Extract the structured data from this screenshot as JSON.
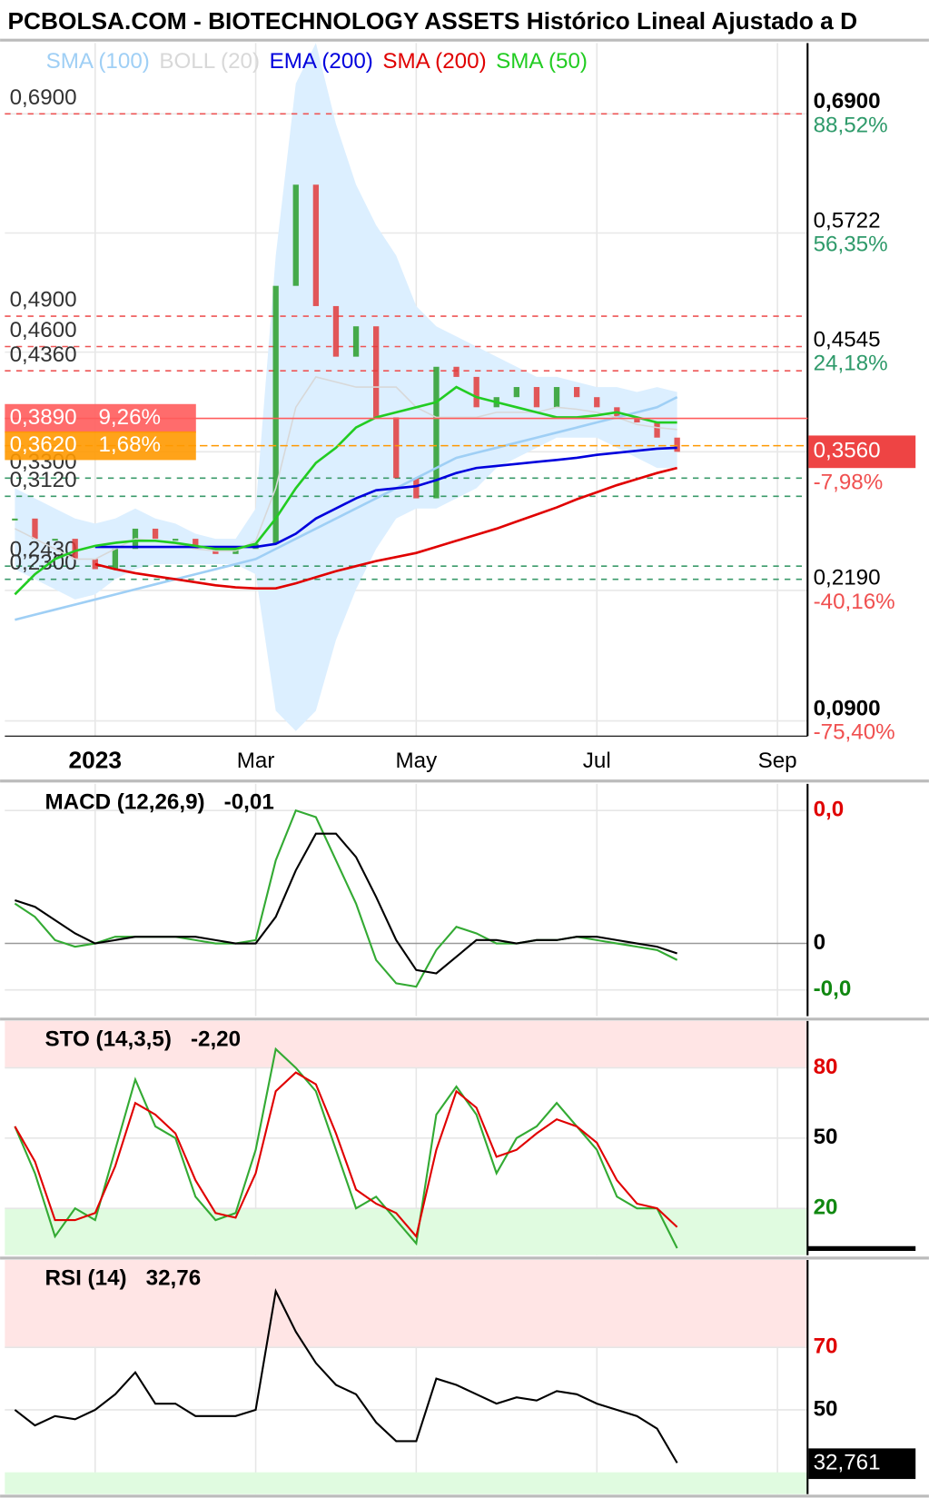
{
  "chart_data": [
    {
      "type": "candlestick",
      "title": "PCBOLSA.COM - BIOTECHNOLOGY ASSETS Histórico Lineal Ajustado a D",
      "categories": [
        null,
        null,
        null,
        null,
        "2023",
        null,
        null,
        null,
        null,
        null,
        null,
        null,
        "Mar",
        null,
        null,
        null,
        null,
        null,
        null,
        null,
        "May",
        null,
        null,
        null,
        null,
        null,
        null,
        null,
        null,
        "Jul",
        null,
        null,
        null,
        null,
        null,
        null,
        null,
        null,
        "Sep",
        null
      ],
      "values": [
        0.29,
        0.27,
        0.27,
        0.25,
        0.24,
        0.26,
        0.28,
        0.27,
        0.27,
        0.26,
        0.255,
        0.26,
        0.265,
        0.52,
        0.62,
        0.5,
        0.45,
        0.48,
        0.39,
        0.33,
        0.31,
        0.44,
        0.43,
        0.4,
        0.41,
        0.42,
        0.4,
        0.42,
        0.41,
        0.4,
        0.39,
        0.385,
        0.37,
        0.356,
        null,
        null,
        null,
        null,
        null,
        null
      ],
      "up_color": "#2a9d2a",
      "down_color": "#e23b3b",
      "series": [
        {
          "name": "SMA (100)",
          "color": "#9fcff5",
          "values": [
            0.19,
            0.195,
            0.2,
            0.205,
            0.21,
            0.215,
            0.22,
            0.225,
            0.23,
            0.235,
            0.24,
            0.245,
            0.25,
            0.26,
            0.27,
            0.28,
            0.29,
            0.3,
            0.31,
            0.32,
            0.33,
            0.34,
            0.35,
            0.355,
            0.36,
            0.365,
            0.37,
            0.375,
            0.38,
            0.385,
            0.39,
            0.395,
            0.4,
            0.41,
            null,
            null,
            null,
            null,
            null,
            null
          ]
        },
        {
          "name": "BOLL (20)",
          "color": "#d8d8d8",
          "band_color": "#dcefff",
          "values": [
            0.28,
            0.27,
            0.26,
            0.25,
            0.25,
            0.26,
            0.27,
            0.268,
            0.265,
            0.26,
            0.258,
            0.258,
            0.268,
            0.32,
            0.4,
            0.43,
            0.425,
            0.42,
            0.42,
            0.42,
            0.4,
            0.39,
            0.39,
            0.39,
            0.395,
            0.395,
            0.395,
            0.4,
            0.398,
            0.395,
            0.39,
            0.383,
            0.38,
            0.378,
            null,
            null,
            null,
            null,
            null,
            null
          ],
          "upper": [
            0.32,
            0.31,
            0.3,
            0.29,
            0.285,
            0.29,
            0.3,
            0.29,
            0.285,
            0.275,
            0.27,
            0.27,
            0.3,
            0.55,
            0.72,
            0.76,
            0.68,
            0.62,
            0.58,
            0.55,
            0.5,
            0.48,
            0.47,
            0.46,
            0.45,
            0.44,
            0.43,
            0.43,
            0.425,
            0.42,
            0.42,
            0.415,
            0.42,
            0.415,
            null,
            null,
            null,
            null,
            null,
            null
          ],
          "lower": [
            0.24,
            0.23,
            0.22,
            0.21,
            0.215,
            0.23,
            0.24,
            0.245,
            0.245,
            0.245,
            0.245,
            0.245,
            0.235,
            0.1,
            0.08,
            0.1,
            0.17,
            0.22,
            0.26,
            0.29,
            0.3,
            0.3,
            0.31,
            0.32,
            0.34,
            0.35,
            0.36,
            0.37,
            0.37,
            0.37,
            0.36,
            0.35,
            0.34,
            0.34,
            null,
            null,
            null,
            null,
            null,
            null
          ]
        },
        {
          "name": "EMA (200)",
          "color": "#0000dd",
          "values": [
            null,
            null,
            null,
            null,
            0.262,
            0.262,
            0.262,
            0.262,
            0.262,
            0.262,
            0.262,
            0.262,
            0.262,
            0.265,
            0.275,
            0.29,
            0.3,
            0.31,
            0.318,
            0.32,
            0.322,
            0.328,
            0.335,
            0.34,
            0.342,
            0.344,
            0.346,
            0.348,
            0.35,
            0.353,
            0.355,
            0.357,
            0.359,
            0.36,
            null,
            null,
            null,
            null,
            null,
            null
          ]
        },
        {
          "name": "SMA (200)",
          "color": "#e00000",
          "values": [
            null,
            null,
            null,
            null,
            0.245,
            0.24,
            0.236,
            0.233,
            0.23,
            0.227,
            0.224,
            0.222,
            0.221,
            0.221,
            0.226,
            0.232,
            0.238,
            0.243,
            0.248,
            0.252,
            0.256,
            0.262,
            0.268,
            0.274,
            0.28,
            0.287,
            0.294,
            0.301,
            0.309,
            0.316,
            0.323,
            0.329,
            0.335,
            0.34,
            null,
            null,
            null,
            null,
            null,
            null
          ]
        },
        {
          "name": "SMA (50)",
          "color": "#22cc22",
          "values": [
            0.215,
            0.235,
            0.25,
            0.258,
            0.263,
            0.266,
            0.268,
            0.268,
            0.266,
            0.263,
            0.26,
            0.26,
            0.265,
            0.29,
            0.32,
            0.345,
            0.36,
            0.38,
            0.39,
            0.395,
            0.4,
            0.405,
            0.42,
            0.41,
            0.405,
            0.4,
            0.395,
            0.39,
            0.39,
            0.392,
            0.395,
            0.39,
            0.385,
            0.385,
            null,
            null,
            null,
            null,
            null,
            null
          ]
        }
      ],
      "ylim": [
        0.075,
        0.76
      ],
      "yticks": [
        {
          "value": 0.69,
          "label": "0,6900"
        },
        {
          "value": 0.5722,
          "label": "0,5722"
        },
        {
          "value": 0.4545,
          "label": "0,4545"
        },
        {
          "value": 0.356,
          "label": "0,3560"
        },
        {
          "value": 0.219,
          "label": "0,2190"
        },
        {
          "value": 0.09,
          "label": "0,0900"
        }
      ],
      "ytick_changes": [
        "88,52%",
        "56,35%",
        "24,18%",
        "-7,98%",
        "-40,16%",
        "-75,40%"
      ],
      "current_tick": 3,
      "levels": [
        {
          "value": 0.69,
          "label": "0,6900",
          "color": "#e55"
        },
        {
          "value": 0.49,
          "label": "0,4900",
          "color": "#e55"
        },
        {
          "value": 0.46,
          "label": "0,4600",
          "color": "#e55"
        },
        {
          "value": 0.436,
          "label": "0,4360",
          "color": "#e55"
        },
        {
          "value": 0.33,
          "label": "0,3300",
          "color": "#3a9a6a"
        },
        {
          "value": 0.312,
          "label": "0,3120",
          "color": "#3a9a6a"
        },
        {
          "value": 0.243,
          "label": "0,2430",
          "color": "#3a9a6a"
        },
        {
          "value": 0.23,
          "label": "0,2300",
          "color": "#3a9a6a"
        }
      ],
      "highlights": [
        {
          "value": 0.389,
          "label": "0,3890",
          "change": "9,26%",
          "color": "#ff5c5c"
        },
        {
          "value": 0.362,
          "label": "0,3620",
          "change": "1,68%",
          "color": "#ff9900"
        }
      ]
    },
    {
      "type": "line",
      "title": "MACD (12,26,9)",
      "value_label": "-0,01",
      "series": [
        {
          "color": "#33aa33",
          "values": [
            0.012,
            0.008,
            0.001,
            -0.001,
            0,
            0.002,
            0.002,
            0.002,
            0.002,
            0.001,
            0,
            0,
            0.001,
            0.025,
            0.04,
            0.038,
            0.025,
            0.012,
            -0.005,
            -0.012,
            -0.013,
            -0.002,
            0.005,
            0.003,
            0,
            0,
            0.001,
            0.001,
            0.002,
            0.001,
            0,
            -0.001,
            -0.002,
            -0.005,
            null,
            null,
            null,
            null,
            null,
            null
          ]
        },
        {
          "color": "#000000",
          "values": [
            0.013,
            0.011,
            0.007,
            0.003,
            0,
            0.001,
            0.002,
            0.002,
            0.002,
            0.002,
            0.001,
            0,
            0,
            0.008,
            0.022,
            0.033,
            0.033,
            0.026,
            0.014,
            0.001,
            -0.008,
            -0.009,
            -0.004,
            0.001,
            0.001,
            0,
            0.001,
            0.001,
            0.002,
            0.002,
            0.001,
            0,
            -0.001,
            -0.003,
            null,
            null,
            null,
            null,
            null,
            null
          ]
        }
      ],
      "ylim": [
        -0.0219,
        0.048
      ],
      "yticks": [
        {
          "value": 0.04,
          "label": "0,0"
        },
        0,
        {
          "value": -0.014,
          "label": "-0,0"
        }
      ],
      "ytick_colors": [
        "#e00000",
        "#000000",
        "#118811"
      ]
    },
    {
      "type": "line",
      "title": "STO (14,3,5)",
      "value_label": "-2,20",
      "series": [
        {
          "color": "#33aa33",
          "values": [
            55,
            35,
            8,
            20,
            15,
            45,
            75,
            55,
            50,
            25,
            15,
            18,
            45,
            88,
            80,
            70,
            45,
            20,
            25,
            15,
            5,
            60,
            72,
            60,
            35,
            50,
            55,
            65,
            55,
            45,
            25,
            20,
            20,
            3,
            null,
            null,
            null,
            null,
            null,
            null
          ]
        },
        {
          "color": "#e00000",
          "values": [
            55,
            40,
            15,
            15,
            18,
            38,
            65,
            60,
            52,
            32,
            18,
            16,
            35,
            70,
            78,
            73,
            52,
            28,
            22,
            18,
            8,
            45,
            70,
            63,
            42,
            45,
            52,
            58,
            55,
            48,
            32,
            22,
            20,
            12,
            null,
            null,
            null,
            null,
            null,
            null
          ]
        }
      ],
      "ylim": [
        0,
        100
      ],
      "yticks": [
        80,
        50,
        20
      ],
      "ytick_colors": [
        "#e00000",
        "#000000",
        "#118811"
      ],
      "zones": [
        {
          "from": 80,
          "to": 100,
          "color": "#ffe5e5"
        },
        {
          "from": 0,
          "to": 20,
          "color": "#e0fbe0"
        }
      ]
    },
    {
      "type": "line",
      "title": "RSI (14)",
      "value_label": "32,76",
      "series": [
        {
          "color": "#000000",
          "values": [
            50,
            45,
            48,
            47,
            50,
            55,
            62,
            52,
            52,
            48,
            48,
            48,
            50,
            88,
            75,
            65,
            58,
            55,
            46,
            40,
            40,
            60,
            58,
            55,
            52,
            54,
            53,
            56,
            55,
            52,
            50,
            48,
            44,
            33,
            null,
            null,
            null,
            null,
            null,
            null
          ]
        }
      ],
      "ylim": [
        23,
        98
      ],
      "yticks": [
        70,
        50
      ],
      "ytick_colors": [
        "#e00000",
        "#000000"
      ],
      "zones": [
        {
          "from": 70,
          "to": 98,
          "color": "#ffe5e5"
        },
        {
          "from": 23,
          "to": 30,
          "color": "#e0fbe0"
        }
      ],
      "last": {
        "value": 32.761,
        "label": "32,761"
      }
    }
  ]
}
